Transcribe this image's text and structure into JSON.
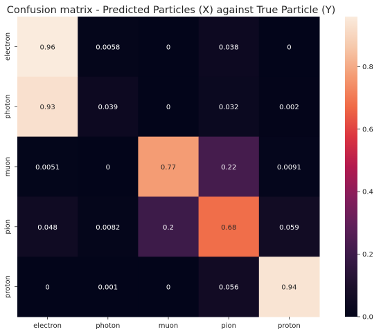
{
  "chart_data": {
    "type": "heatmap",
    "title": "Confusion matrix - Predicted Particles (X) against True Particle (Y)",
    "x_categories": [
      "electron",
      "photon",
      "muon",
      "pion",
      "proton"
    ],
    "y_categories": [
      "electron",
      "photon",
      "muon",
      "pion",
      "proton"
    ],
    "values": [
      [
        0.96,
        0.0058,
        0,
        0.038,
        0
      ],
      [
        0.93,
        0.039,
        0,
        0.032,
        0.002
      ],
      [
        0.0051,
        0,
        0.77,
        0.22,
        0.0091
      ],
      [
        0.048,
        0.0082,
        0.2,
        0.68,
        0.059
      ],
      [
        0,
        0.001,
        0,
        0.056,
        0.94
      ]
    ],
    "annotations": [
      [
        "0.96",
        "0.0058",
        "0",
        "0.038",
        "0"
      ],
      [
        "0.93",
        "0.039",
        "0",
        "0.032",
        "0.002"
      ],
      [
        "0.0051",
        "0",
        "0.77",
        "0.22",
        "0.0091"
      ],
      [
        "0.048",
        "0.0082",
        "0.2",
        "0.68",
        "0.059"
      ],
      [
        "0",
        "0.001",
        "0",
        "0.056",
        "0.94"
      ]
    ],
    "colorbar": {
      "range": [
        0,
        0.96
      ],
      "ticks": [
        0.0,
        0.2,
        0.4,
        0.6,
        0.8
      ],
      "tick_labels": [
        "0.0",
        "0.2",
        "0.4",
        "0.6",
        "0.8"
      ],
      "colormap": "rocket"
    },
    "grid": false,
    "legend": "colorbar-right"
  }
}
